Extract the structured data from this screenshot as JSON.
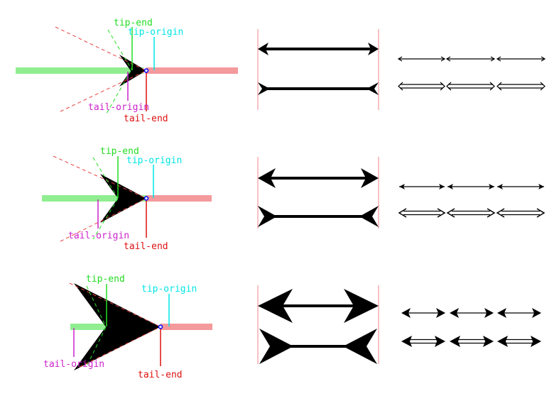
{
  "labels": {
    "tip_end": "tip-end",
    "tip_origin": "tip-origin",
    "tail_origin": "tail-origin",
    "tail_end": "tail-end"
  },
  "colors": {
    "tip_end": "#22dd22",
    "tip_origin": "#00e5e5",
    "tail_origin": "#cc22cc",
    "tail_end": "#dd1111",
    "green_bar": "#90ee90",
    "red_bar": "#f4999c",
    "guide_line": "#f4999c",
    "arrow": "#000000",
    "tip_dot": "#0000ff"
  },
  "rows": [
    {
      "label_top": "tip-end",
      "label_tip_origin": "tip-origin",
      "label_tail_origin": "tail-origin",
      "label_tail_end": "tail-end"
    },
    {
      "label_top": "tip-end",
      "label_tip_origin": "tip-origin",
      "label_tail_origin": "tail-origin",
      "label_tail_end": "tail-end"
    },
    {
      "label_top": "tip-end",
      "label_tip_origin": "tip-origin",
      "label_tail_origin": "tail-origin",
      "label_tail_end": "tail-end"
    }
  ]
}
